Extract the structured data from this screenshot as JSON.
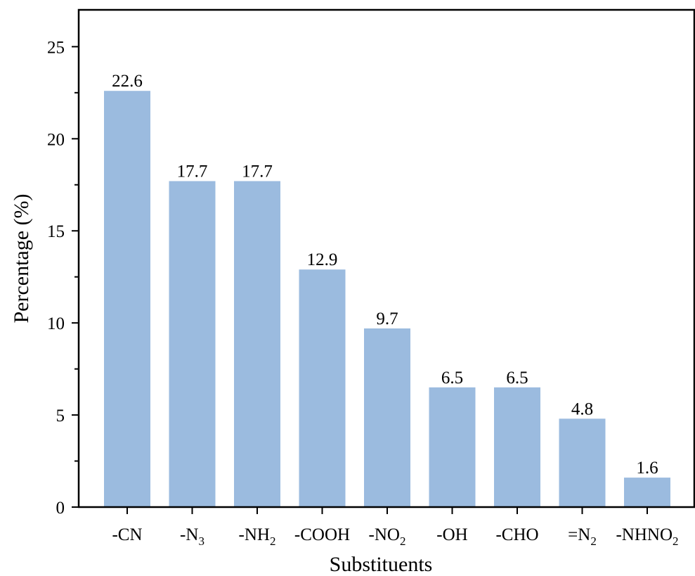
{
  "chart_data": {
    "type": "bar",
    "title": "",
    "xlabel": "Substituents",
    "ylabel": "Percentage (%)",
    "ylim": [
      0,
      27
    ],
    "yticks": [
      0,
      5,
      10,
      15,
      20,
      25
    ],
    "categories": [
      {
        "base": "-CN",
        "sub": "",
        "tail": ""
      },
      {
        "base": "-N",
        "sub": "3",
        "tail": ""
      },
      {
        "base": "-NH",
        "sub": "2",
        "tail": ""
      },
      {
        "base": "-COOH",
        "sub": "",
        "tail": ""
      },
      {
        "base": "-NO",
        "sub": "2",
        "tail": ""
      },
      {
        "base": "-OH",
        "sub": "",
        "tail": ""
      },
      {
        "base": "-CHO",
        "sub": "",
        "tail": ""
      },
      {
        "base": "=N",
        "sub": "2",
        "tail": ""
      },
      {
        "base": "-NHNO",
        "sub": "2",
        "tail": ""
      }
    ],
    "values": [
      22.6,
      17.7,
      17.7,
      12.9,
      9.7,
      6.5,
      6.5,
      4.8,
      1.6
    ],
    "data_labels": [
      "22.6",
      "17.7",
      "17.7",
      "12.9",
      "9.7",
      "6.5",
      "6.5",
      "4.8",
      "1.6"
    ],
    "bar_color": "#9bbbdf",
    "grid": false,
    "legend": "none"
  }
}
